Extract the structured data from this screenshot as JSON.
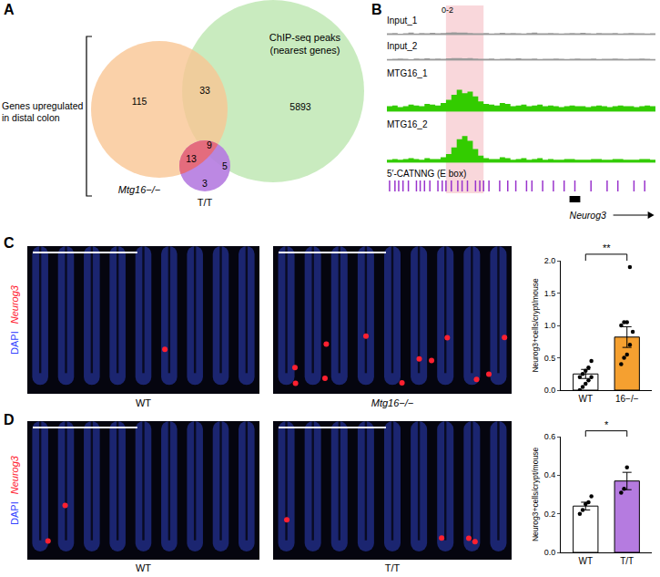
{
  "venn": {
    "label": "A",
    "bracket_label_lines": [
      "Genes upregulated",
      "in distal colon"
    ],
    "sets": [
      {
        "name": "Mtg16−/−",
        "color": "#f9c593"
      },
      {
        "name": "T/T",
        "color": "#b57be0"
      },
      {
        "name": "ChIP-seq peaks (nearest genes)",
        "color": "#bfe8b4"
      }
    ],
    "overlap_color": "#e66a78",
    "regions": [
      {
        "in": [
          "Mtg16−/−"
        ],
        "value": 115
      },
      {
        "in": [
          "Mtg16−/−",
          "ChIP-seq peaks (nearest genes)"
        ],
        "value": 33
      },
      {
        "in": [
          "ChIP-seq peaks (nearest genes)"
        ],
        "value": 5893
      },
      {
        "in": [
          "Mtg16−/−",
          "T/T"
        ],
        "value": 13
      },
      {
        "in": [
          "Mtg16−/−",
          "T/T",
          "ChIP-seq peaks (nearest genes)"
        ],
        "value": 9
      },
      {
        "in": [
          "T/T",
          "ChIP-seq peaks (nearest genes)"
        ],
        "value": 5
      },
      {
        "in": [
          "T/T"
        ],
        "value": 3
      }
    ]
  },
  "tracks": {
    "label": "B",
    "range_label": "0-2",
    "ylim": [
      0,
      2
    ],
    "highlight": [
      11,
      18
    ],
    "series": [
      {
        "name": "Input_1",
        "color": "#9a9a9a",
        "values": [
          0.08,
          0.1,
          0.06,
          0.09,
          0.12,
          0.07,
          0.1,
          0.08,
          0.11,
          0.09,
          0.1,
          0.12,
          0.14,
          0.13,
          0.12,
          0.1,
          0.09,
          0.08,
          0.1,
          0.07,
          0.09,
          0.11,
          0.08,
          0.1,
          0.09,
          0.07,
          0.1,
          0.12,
          0.08,
          0.09,
          0.1,
          0.08,
          0.07,
          0.09,
          0.1,
          0.08,
          0.11,
          0.09,
          0.07,
          0.1,
          0.08,
          0.09,
          0.1,
          0.07,
          0.08,
          0.1,
          0.09,
          0.08,
          0.07,
          0.09
        ]
      },
      {
        "name": "Input_2",
        "color": "#9a9a9a",
        "values": [
          0.07,
          0.09,
          0.1,
          0.08,
          0.06,
          0.1,
          0.09,
          0.11,
          0.08,
          0.1,
          0.09,
          0.11,
          0.12,
          0.13,
          0.11,
          0.12,
          0.1,
          0.09,
          0.08,
          0.1,
          0.07,
          0.09,
          0.1,
          0.08,
          0.11,
          0.09,
          0.08,
          0.1,
          0.07,
          0.09,
          0.08,
          0.1,
          0.09,
          0.07,
          0.08,
          0.1,
          0.09,
          0.08,
          0.1,
          0.07,
          0.09,
          0.08,
          0.1,
          0.09,
          0.07,
          0.08,
          0.09,
          0.1,
          0.08,
          0.07
        ]
      },
      {
        "name": "MTG16_1",
        "color": "#33cc00",
        "values": [
          0.3,
          0.35,
          0.25,
          0.3,
          0.4,
          0.35,
          0.3,
          0.45,
          0.4,
          0.35,
          0.5,
          0.7,
          1.0,
          1.3,
          1.1,
          1.2,
          0.9,
          0.6,
          0.45,
          0.4,
          0.35,
          0.5,
          0.45,
          0.3,
          0.35,
          0.4,
          0.3,
          0.35,
          0.4,
          0.3,
          0.35,
          0.3,
          0.25,
          0.3,
          0.35,
          0.3,
          0.3,
          0.25,
          0.3,
          0.35,
          0.3,
          0.25,
          0.3,
          0.35,
          0.3,
          0.3,
          0.25,
          0.3,
          0.35,
          0.3
        ]
      },
      {
        "name": "MTG16_2",
        "color": "#33cc00",
        "values": [
          0.15,
          0.2,
          0.15,
          0.2,
          0.25,
          0.2,
          0.15,
          0.25,
          0.2,
          0.2,
          0.3,
          0.5,
          0.9,
          1.4,
          1.6,
          1.3,
          0.8,
          0.4,
          0.25,
          0.2,
          0.2,
          0.3,
          0.25,
          0.15,
          0.2,
          0.25,
          0.15,
          0.2,
          0.25,
          0.15,
          0.2,
          0.15,
          0.15,
          0.2,
          0.2,
          0.15,
          0.15,
          0.15,
          0.2,
          0.2,
          0.15,
          0.15,
          0.2,
          0.2,
          0.15,
          0.15,
          0.15,
          0.2,
          0.2,
          0.15
        ]
      }
    ],
    "motif": {
      "name": "5′-CATNNG (E box)",
      "color": "#9933cc",
      "positions": [
        0.5,
        1.5,
        2.2,
        3,
        4,
        5.5,
        6.2,
        7,
        8,
        9.5,
        10.3,
        11,
        12,
        13.2,
        14,
        15,
        16.5,
        17.3,
        18,
        19,
        21,
        22.5,
        24,
        26,
        27,
        29,
        31,
        33,
        35,
        38,
        41,
        43,
        46,
        48
      ]
    },
    "gene": {
      "name": "Neurog3",
      "start": 34,
      "end": 36
    }
  },
  "images": [
    {
      "label": "C",
      "channels": [
        {
          "name": "DAPI",
          "color": "#3344ff"
        },
        {
          "name": "Neurog3",
          "color": "#ff2030"
        }
      ],
      "captions": [
        "WT",
        "Mtg16−/−"
      ]
    },
    {
      "label": "D",
      "channels": [
        {
          "name": "DAPI",
          "color": "#3344ff"
        },
        {
          "name": "Neurog3",
          "color": "#ff2030"
        }
      ],
      "captions": [
        "WT",
        "T/T"
      ]
    }
  ],
  "chart_data": [
    {
      "type": "bar",
      "categories": [
        "WT",
        "16−/−"
      ],
      "values": [
        0.25,
        0.82
      ],
      "errors": [
        0.07,
        0.16
      ],
      "points": [
        [
          0.0,
          0.05,
          0.1,
          0.15,
          0.2,
          0.2,
          0.25,
          0.3,
          0.35,
          0.45
        ],
        [
          0.4,
          0.5,
          0.55,
          0.7,
          0.9,
          1.0,
          1.05,
          1.05,
          1.9
        ]
      ],
      "colors": [
        "#ffffff",
        "#f5a030"
      ],
      "ylabel": "Neurog3+cells/crypt/mouse",
      "ylim": [
        0,
        2.0
      ],
      "yticks": [
        {
          "value": 0,
          "label": "0.0"
        },
        {
          "value": 0.5,
          "label": "0.5"
        },
        {
          "value": 1.0,
          "label": "1.0"
        },
        {
          "value": 1.5,
          "label": "1.5"
        },
        {
          "value": 2.0,
          "label": "2.0"
        }
      ],
      "significance": "**",
      "grid": false
    },
    {
      "type": "bar",
      "categories": [
        "WT",
        "T/T"
      ],
      "values": [
        0.24,
        0.37
      ],
      "errors": [
        0.02,
        0.045
      ],
      "points": [
        [
          0.2,
          0.22,
          0.25,
          0.26,
          0.29
        ],
        [
          0.31,
          0.33,
          0.44
        ]
      ],
      "colors": [
        "#ffffff",
        "#b57be0"
      ],
      "ylabel": "Neurog3+cells/crypt/mouse",
      "ylim": [
        0,
        0.6
      ],
      "yticks": [
        {
          "value": 0,
          "label": "0.0"
        },
        {
          "value": 0.2,
          "label": "0.2"
        },
        {
          "value": 0.4,
          "label": "0.4"
        },
        {
          "value": 0.6,
          "label": "0.6"
        }
      ],
      "significance": "*",
      "grid": false
    }
  ]
}
